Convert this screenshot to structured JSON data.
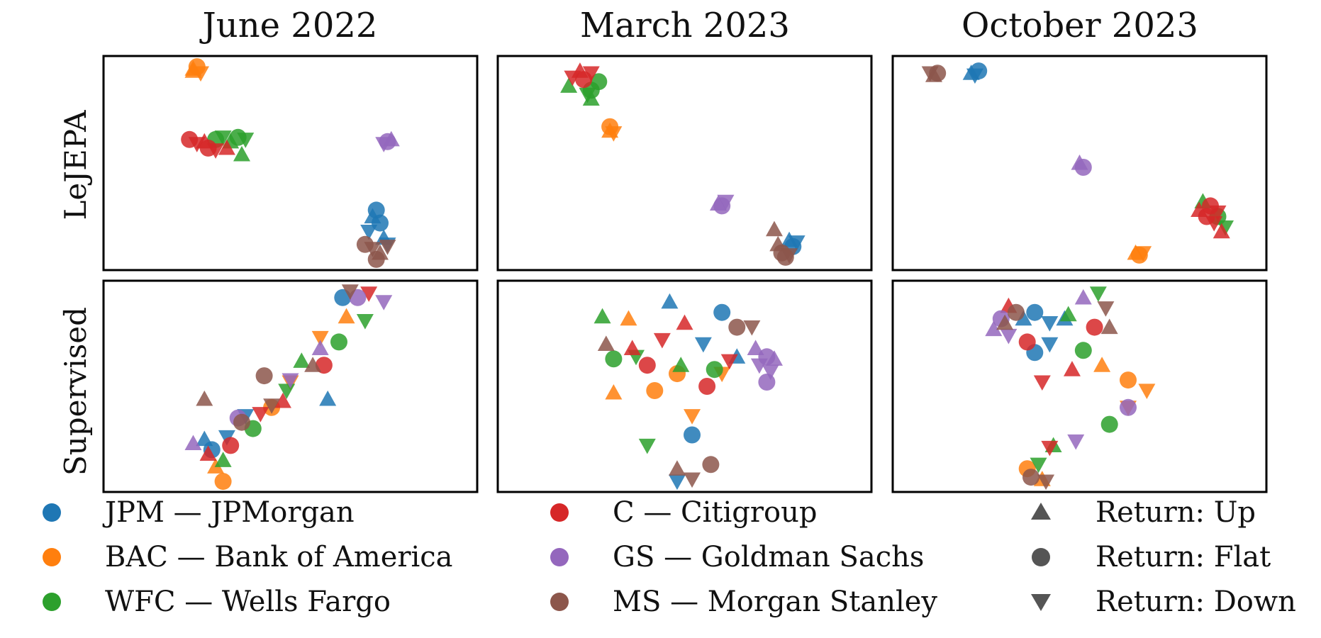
{
  "columns": [
    "June 2022",
    "March 2023",
    "October 2023"
  ],
  "rows": [
    "LeJEPA",
    "Supervised"
  ],
  "colors": {
    "JPM": "#1f77b4",
    "BAC": "#ff7f0e",
    "WFC": "#2ca02c",
    "C": "#d62728",
    "GS": "#9467bd",
    "MS": "#8c564b",
    "return_marker": "#555555"
  },
  "legend": {
    "banks": [
      {
        "code": "JPM",
        "label": "JPM — JPMorgan"
      },
      {
        "code": "BAC",
        "label": "BAC — Bank of America"
      },
      {
        "code": "WFC",
        "label": "WFC — Wells Fargo"
      },
      {
        "code": "C",
        "label": "C — Citigroup"
      },
      {
        "code": "GS",
        "label": "GS — Goldman Sachs"
      },
      {
        "code": "MS",
        "label": "MS — Morgan Stanley"
      }
    ],
    "returns": [
      {
        "marker": "up",
        "label": "Return: Up"
      },
      {
        "marker": "flat",
        "label": "Return: Flat"
      },
      {
        "marker": "down",
        "label": "Return: Down"
      }
    ]
  },
  "chart_data": [
    {
      "type": "scatter",
      "row": "LeJEPA",
      "column": "June 2022",
      "xlim": [
        0,
        1
      ],
      "ylim": [
        0,
        1
      ],
      "series": [
        {
          "name": "JPM",
          "points": [
            [
              0.72,
              0.25
            ],
            [
              0.74,
              0.22
            ],
            [
              0.71,
              0.18
            ],
            [
              0.75,
              0.15
            ],
            [
              0.73,
              0.28
            ],
            [
              0.76,
              0.12
            ]
          ]
        },
        {
          "name": "BAC",
          "points": [
            [
              0.24,
              0.93
            ],
            [
              0.25,
              0.95
            ],
            [
              0.26,
              0.92
            ],
            [
              0.24,
              0.94
            ]
          ]
        },
        {
          "name": "WFC",
          "points": [
            [
              0.3,
              0.61
            ],
            [
              0.32,
              0.62
            ],
            [
              0.34,
              0.6
            ],
            [
              0.36,
              0.62
            ],
            [
              0.38,
              0.61
            ],
            [
              0.37,
              0.54
            ]
          ]
        },
        {
          "name": "C",
          "points": [
            [
              0.23,
              0.61
            ],
            [
              0.25,
              0.59
            ],
            [
              0.27,
              0.6
            ],
            [
              0.28,
              0.57
            ],
            [
              0.3,
              0.56
            ],
            [
              0.33,
              0.57
            ]
          ]
        },
        {
          "name": "GS",
          "points": [
            [
              0.76,
              0.6
            ],
            [
              0.75,
              0.59
            ],
            [
              0.77,
              0.61
            ]
          ]
        },
        {
          "name": "MS",
          "points": [
            [
              0.7,
              0.12
            ],
            [
              0.72,
              0.1
            ],
            [
              0.74,
              0.08
            ],
            [
              0.73,
              0.05
            ],
            [
              0.76,
              0.11
            ]
          ]
        }
      ]
    },
    {
      "type": "scatter",
      "row": "LeJEPA",
      "column": "March 2023",
      "xlim": [
        0,
        1
      ],
      "ylim": [
        0,
        1
      ],
      "series": [
        {
          "name": "JPM",
          "points": [
            [
              0.78,
              0.14
            ],
            [
              0.79,
              0.11
            ],
            [
              0.8,
              0.13
            ]
          ]
        },
        {
          "name": "BAC",
          "points": [
            [
              0.3,
              0.65
            ],
            [
              0.3,
              0.67
            ],
            [
              0.31,
              0.64
            ]
          ]
        },
        {
          "name": "WFC",
          "points": [
            [
              0.19,
              0.86
            ],
            [
              0.25,
              0.84
            ],
            [
              0.24,
              0.82
            ],
            [
              0.25,
              0.8
            ],
            [
              0.27,
              0.88
            ]
          ]
        },
        {
          "name": "C",
          "points": [
            [
              0.2,
              0.9
            ],
            [
              0.22,
              0.93
            ],
            [
              0.23,
              0.89
            ],
            [
              0.25,
              0.92
            ]
          ]
        },
        {
          "name": "GS",
          "points": [
            [
              0.59,
              0.31
            ],
            [
              0.6,
              0.3
            ],
            [
              0.61,
              0.32
            ]
          ]
        },
        {
          "name": "MS",
          "points": [
            [
              0.75,
              0.12
            ],
            [
              0.76,
              0.08
            ],
            [
              0.78,
              0.07
            ],
            [
              0.74,
              0.19
            ],
            [
              0.77,
              0.06
            ]
          ]
        }
      ]
    },
    {
      "type": "scatter",
      "row": "LeJEPA",
      "column": "October 2023",
      "xlim": [
        0,
        1
      ],
      "ylim": [
        0,
        1
      ],
      "series": [
        {
          "name": "JPM",
          "points": [
            [
              0.21,
              0.92
            ],
            [
              0.23,
              0.93
            ],
            [
              0.22,
              0.91
            ]
          ]
        },
        {
          "name": "BAC",
          "points": [
            [
              0.65,
              0.08
            ],
            [
              0.66,
              0.07
            ],
            [
              0.67,
              0.08
            ]
          ]
        },
        {
          "name": "WFC",
          "points": [
            [
              0.83,
              0.32
            ],
            [
              0.87,
              0.25
            ],
            [
              0.89,
              0.2
            ]
          ]
        },
        {
          "name": "C",
          "points": [
            [
              0.82,
              0.28
            ],
            [
              0.84,
              0.25
            ],
            [
              0.86,
              0.22
            ],
            [
              0.88,
              0.18
            ],
            [
              0.85,
              0.3
            ],
            [
              0.87,
              0.27
            ]
          ]
        },
        {
          "name": "GS",
          "points": [
            [
              0.5,
              0.5
            ],
            [
              0.51,
              0.48
            ]
          ]
        },
        {
          "name": "MS",
          "points": [
            [
              0.1,
              0.92
            ],
            [
              0.11,
              0.91
            ],
            [
              0.12,
              0.92
            ]
          ]
        }
      ]
    },
    {
      "type": "scatter",
      "row": "Supervised",
      "column": "June 2022",
      "xlim": [
        0,
        1
      ],
      "ylim": [
        0,
        1
      ],
      "series": [
        {
          "name": "JPM",
          "points": [
            [
              0.27,
              0.25
            ],
            [
              0.29,
              0.2
            ],
            [
              0.33,
              0.26
            ],
            [
              0.6,
              0.44
            ],
            [
              0.64,
              0.92
            ],
            [
              0.38,
              0.36
            ]
          ]
        },
        {
          "name": "BAC",
          "points": [
            [
              0.3,
              0.12
            ],
            [
              0.45,
              0.4
            ],
            [
              0.58,
              0.73
            ],
            [
              0.65,
              0.83
            ],
            [
              0.32,
              0.05
            ],
            [
              0.5,
              0.52
            ]
          ]
        },
        {
          "name": "WFC",
          "points": [
            [
              0.32,
              0.15
            ],
            [
              0.4,
              0.3
            ],
            [
              0.49,
              0.48
            ],
            [
              0.53,
              0.62
            ],
            [
              0.63,
              0.71
            ],
            [
              0.7,
              0.81
            ]
          ]
        },
        {
          "name": "C",
          "points": [
            [
              0.28,
              0.18
            ],
            [
              0.34,
              0.22
            ],
            [
              0.42,
              0.37
            ],
            [
              0.48,
              0.43
            ],
            [
              0.59,
              0.6
            ],
            [
              0.71,
              0.94
            ]
          ]
        },
        {
          "name": "GS",
          "points": [
            [
              0.24,
              0.23
            ],
            [
              0.36,
              0.35
            ],
            [
              0.5,
              0.53
            ],
            [
              0.58,
              0.68
            ],
            [
              0.68,
              0.92
            ],
            [
              0.75,
              0.9
            ]
          ]
        },
        {
          "name": "MS",
          "points": [
            [
              0.27,
              0.44
            ],
            [
              0.37,
              0.33
            ],
            [
              0.45,
              0.41
            ],
            [
              0.56,
              0.6
            ],
            [
              0.43,
              0.55
            ],
            [
              0.66,
              0.95
            ]
          ]
        }
      ]
    },
    {
      "type": "scatter",
      "row": "Supervised",
      "column": "March 2023",
      "xlim": [
        0,
        1
      ],
      "ylim": [
        0,
        1
      ],
      "series": [
        {
          "name": "JPM",
          "points": [
            [
              0.46,
              0.9
            ],
            [
              0.6,
              0.85
            ],
            [
              0.55,
              0.7
            ],
            [
              0.64,
              0.64
            ],
            [
              0.52,
              0.27
            ],
            [
              0.48,
              0.05
            ]
          ]
        },
        {
          "name": "BAC",
          "points": [
            [
              0.35,
              0.82
            ],
            [
              0.48,
              0.56
            ],
            [
              0.6,
              0.56
            ],
            [
              0.31,
              0.47
            ],
            [
              0.42,
              0.48
            ],
            [
              0.52,
              0.36
            ]
          ]
        },
        {
          "name": "WFC",
          "points": [
            [
              0.28,
              0.83
            ],
            [
              0.31,
              0.63
            ],
            [
              0.37,
              0.64
            ],
            [
              0.49,
              0.6
            ],
            [
              0.58,
              0.58
            ],
            [
              0.4,
              0.22
            ]
          ]
        },
        {
          "name": "C",
          "points": [
            [
              0.36,
              0.68
            ],
            [
              0.4,
              0.6
            ],
            [
              0.44,
              0.72
            ],
            [
              0.5,
              0.8
            ],
            [
              0.56,
              0.5
            ],
            [
              0.62,
              0.62
            ]
          ]
        },
        {
          "name": "GS",
          "points": [
            [
              0.69,
              0.68
            ],
            [
              0.72,
              0.64
            ],
            [
              0.7,
              0.6
            ],
            [
              0.74,
              0.63
            ],
            [
              0.72,
              0.52
            ],
            [
              0.73,
              0.57
            ]
          ]
        },
        {
          "name": "MS",
          "points": [
            [
              0.29,
              0.7
            ],
            [
              0.64,
              0.78
            ],
            [
              0.68,
              0.78
            ],
            [
              0.48,
              0.11
            ],
            [
              0.57,
              0.13
            ],
            [
              0.52,
              0.06
            ]
          ]
        }
      ]
    },
    {
      "type": "scatter",
      "row": "Supervised",
      "column": "October 2023",
      "xlim": [
        0,
        1
      ],
      "ylim": [
        0,
        1
      ],
      "series": [
        {
          "name": "JPM",
          "points": [
            [
              0.35,
              0.82
            ],
            [
              0.38,
              0.85
            ],
            [
              0.42,
              0.8
            ],
            [
              0.46,
              0.82
            ],
            [
              0.38,
              0.66
            ],
            [
              0.42,
              0.7
            ]
          ]
        },
        {
          "name": "BAC",
          "points": [
            [
              0.56,
              0.6
            ],
            [
              0.63,
              0.53
            ],
            [
              0.68,
              0.48
            ],
            [
              0.4,
              0.06
            ],
            [
              0.36,
              0.11
            ],
            [
              0.63,
              0.4
            ]
          ]
        },
        {
          "name": "WFC",
          "points": [
            [
              0.47,
              0.84
            ],
            [
              0.51,
              0.67
            ],
            [
              0.55,
              0.94
            ],
            [
              0.43,
              0.22
            ],
            [
              0.58,
              0.32
            ],
            [
              0.39,
              0.13
            ]
          ]
        },
        {
          "name": "C",
          "points": [
            [
              0.31,
              0.88
            ],
            [
              0.36,
              0.71
            ],
            [
              0.4,
              0.52
            ],
            [
              0.48,
              0.58
            ],
            [
              0.54,
              0.78
            ],
            [
              0.42,
              0.21
            ]
          ]
        },
        {
          "name": "GS",
          "points": [
            [
              0.27,
              0.77
            ],
            [
              0.29,
              0.82
            ],
            [
              0.31,
              0.74
            ],
            [
              0.51,
              0.92
            ],
            [
              0.63,
              0.4
            ],
            [
              0.49,
              0.24
            ]
          ]
        },
        {
          "name": "MS",
          "points": [
            [
              0.3,
              0.8
            ],
            [
              0.33,
              0.85
            ],
            [
              0.57,
              0.87
            ],
            [
              0.58,
              0.78
            ],
            [
              0.37,
              0.07
            ],
            [
              0.41,
              0.05
            ]
          ]
        }
      ]
    }
  ]
}
